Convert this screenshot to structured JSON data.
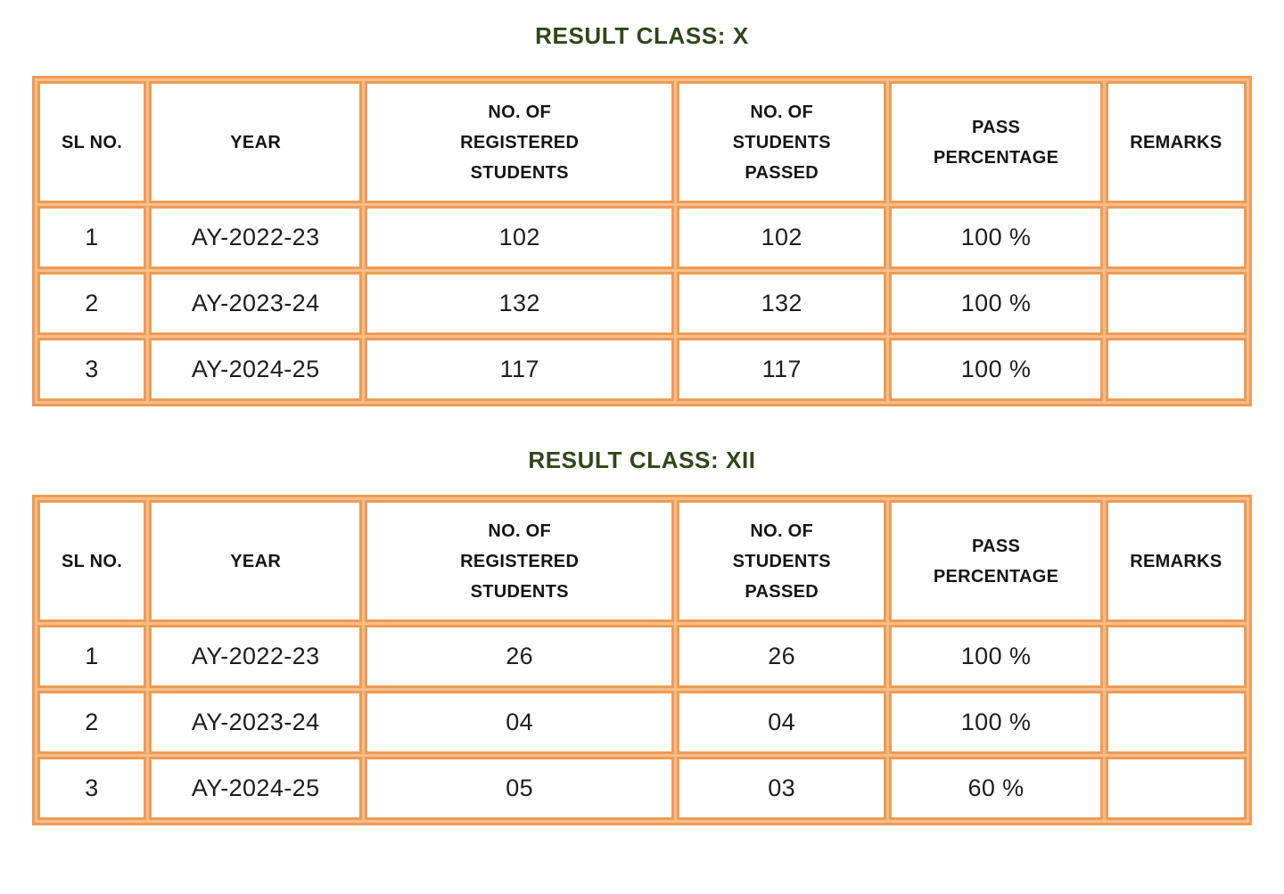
{
  "colors": {
    "border_orange": "#EE9B55",
    "border_gap_orange": "#F5BD8A",
    "title_green": "#31451A",
    "text_black": "#141414",
    "background": "#FFFFFF"
  },
  "tables": [
    {
      "title": "RESULT CLASS: X",
      "columns": [
        "SL NO.",
        "YEAR",
        "NO. OF REGISTERED STUDENTS",
        "NO. OF STUDENTS PASSED",
        "PASS PERCENTAGE",
        "REMARKS"
      ],
      "rows": [
        [
          "1",
          "AY-2022-23",
          "102",
          "102",
          "100 %",
          ""
        ],
        [
          "2",
          "AY-2023-24",
          "132",
          "132",
          "100 %",
          ""
        ],
        [
          "3",
          "AY-2024-25",
          "117",
          "117",
          "100 %",
          ""
        ]
      ]
    },
    {
      "title": "RESULT CLASS: XII",
      "columns": [
        "SL NO.",
        "YEAR",
        "NO. OF REGISTERED STUDENTS",
        "NO. OF STUDENTS PASSED",
        "PASS PERCENTAGE",
        "REMARKS"
      ],
      "rows": [
        [
          "1",
          "AY-2022-23",
          "26",
          "26",
          "100 %",
          ""
        ],
        [
          "2",
          "AY-2023-24",
          "04",
          "04",
          "100 %",
          ""
        ],
        [
          "3",
          "AY-2024-25",
          "05",
          "03",
          "60 %",
          ""
        ]
      ]
    }
  ]
}
